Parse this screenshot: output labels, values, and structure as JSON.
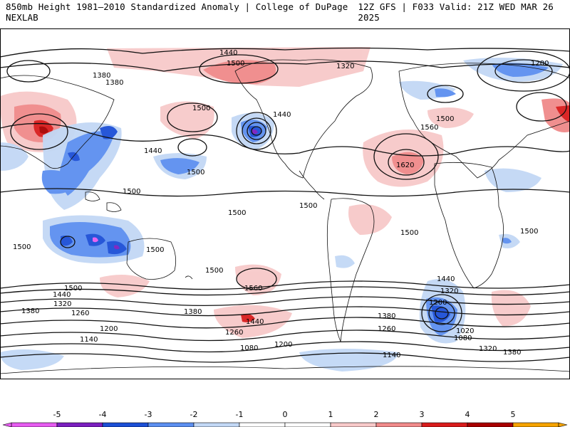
{
  "header": {
    "left_title": "850mb Height 1981–2010 Standardized Anomaly | College of DuPage NEXLAB",
    "right_title": "12Z GFS | F033 Valid: 21Z WED MAR 26 2025"
  },
  "map": {
    "type": "global standardized anomaly map",
    "contour_labels": [
      "1440",
      "1500",
      "1380",
      "1380",
      "1320",
      "1200",
      "1500",
      "1440",
      "1500",
      "1560",
      "1620",
      "1440",
      "1500",
      "1500",
      "1500",
      "1500",
      "1500",
      "1500",
      "1500",
      "1500",
      "1440",
      "1380",
      "1320",
      "1260",
      "1200",
      "1140",
      "1080",
      "1020",
      "1500",
      "1440",
      "1380",
      "1320",
      "1260",
      "1200",
      "1140",
      "1080",
      "1200",
      "1260",
      "1380",
      "1440",
      "1500",
      "1560",
      "1380",
      "1320"
    ],
    "colors": {
      "pos1": "#f7c9c9",
      "pos2": "#f08a8a",
      "pos3": "#d91c1c",
      "pos4": "#a80000",
      "pos5": "#f5a300",
      "neg1": "#c2d8f5",
      "neg2": "#5c8ff0",
      "neg3": "#1c4fd6",
      "neg4": "#7b1fbf",
      "neg5": "#e65cf0"
    }
  },
  "legend": {
    "ticks": [
      "-5",
      "-4",
      "-3",
      "-2",
      "-1",
      "0",
      "1",
      "2",
      "3",
      "4",
      "5"
    ],
    "colors": [
      "#e65cf0",
      "#7b1fbf",
      "#1c4fd6",
      "#5c8ff0",
      "#c2d8f5",
      "#ffffff",
      "#ffffff",
      "#f7c9c9",
      "#f08a8a",
      "#d91c1c",
      "#a80000",
      "#f5a300"
    ]
  }
}
